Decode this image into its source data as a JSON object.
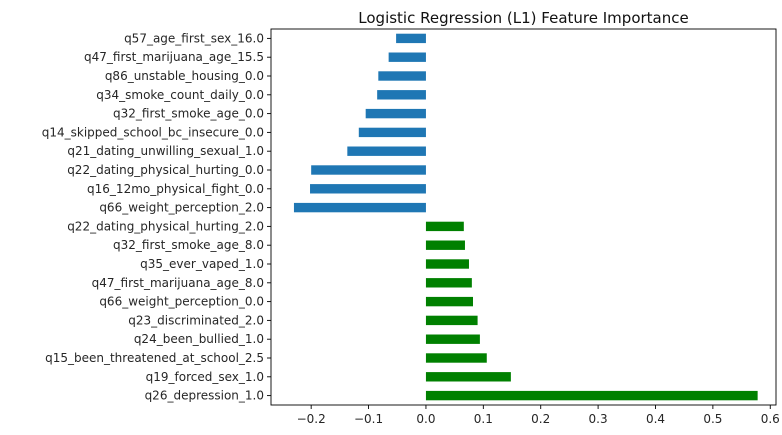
{
  "chart_data": {
    "type": "bar",
    "orientation": "horizontal",
    "title": "Logistic Regression (L1) Feature Importance",
    "xlabel": "",
    "ylabel": "",
    "xlim": [
      -0.27,
      0.61
    ],
    "xticks": [
      -0.2,
      -0.1,
      0.0,
      0.1,
      0.2,
      0.3,
      0.4,
      0.5,
      0.6
    ],
    "xtick_labels": [
      "−0.2",
      "−0.1",
      "0.0",
      "0.1",
      "0.2",
      "0.3",
      "0.4",
      "0.5",
      "0.6"
    ],
    "grid": false,
    "legend": "none",
    "colors": {
      "positive": "#008000",
      "negative": "#1f77b4"
    },
    "categories": [
      "q57_age_first_sex_16.0",
      "q47_first_marijuana_age_15.5",
      "q86_unstable_housing_0.0",
      "q34_smoke_count_daily_0.0",
      "q32_first_smoke_age_0.0",
      "q14_skipped_school_bc_insecure_0.0",
      "q21_dating_unwilling_sexual_1.0",
      "q22_dating_physical_hurting_0.0",
      "q16_12mo_physical_fight_0.0",
      "q66_weight_perception_2.0",
      "q22_dating_physical_hurting_2.0",
      "q32_first_smoke_age_8.0",
      "q35_ever_vaped_1.0",
      "q47_first_marijuana_age_8.0",
      "q66_weight_perception_0.0",
      "q23_discriminated_2.0",
      "q24_been_bullied_1.0",
      "q15_been_threatened_at_school_2.5",
      "q19_forced_sex_1.0",
      "q26_depression_1.0"
    ],
    "values": [
      -0.052,
      -0.065,
      -0.083,
      -0.085,
      -0.105,
      -0.117,
      -0.137,
      -0.2,
      -0.202,
      -0.23,
      0.066,
      0.068,
      0.075,
      0.08,
      0.082,
      0.09,
      0.094,
      0.106,
      0.148,
      0.578
    ]
  }
}
